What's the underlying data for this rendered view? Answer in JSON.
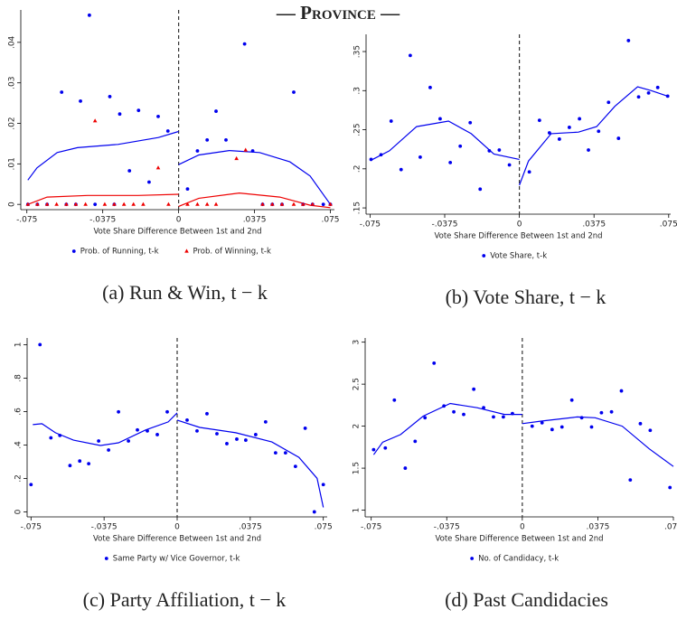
{
  "header": "— Province —",
  "chart_data": [
    {
      "type": "scatter",
      "caption": "(a) Run & Win, t − k",
      "xlabel": "Vote Share Difference Between 1st and 2nd",
      "xlim": [
        -0.078,
        0.077
      ],
      "ylim": [
        -0.0013,
        0.048
      ],
      "xticks": [
        {
          "value": -0.075,
          "label": "-.075"
        },
        {
          "value": -0.0375,
          "label": "-.0375"
        },
        0,
        {
          "value": 0.0375,
          "label": ".0375"
        },
        {
          "value": 0.075,
          "label": ".075"
        }
      ],
      "yticks": [
        0,
        {
          "value": 0.01,
          "label": ".01"
        },
        {
          "value": 0.02,
          "label": ".02"
        },
        {
          "value": 0.03,
          "label": ".03"
        },
        {
          "value": 0.04,
          "label": ".04"
        }
      ],
      "series": [
        {
          "name": "Prob. of Running, t-k",
          "color": "#0000ee",
          "marker": "circle",
          "x": [
            -0.0745,
            -0.0698,
            -0.065,
            -0.0578,
            -0.0555,
            -0.0508,
            -0.0485,
            -0.0441,
            -0.0413,
            -0.034,
            -0.0318,
            -0.0291,
            -0.0243,
            -0.0198,
            -0.0146,
            -0.0101,
            -0.0053,
            0.0044,
            0.0093,
            0.0141,
            0.0185,
            0.0234,
            0.0326,
            0.0366,
            0.0415,
            0.0463,
            0.0511,
            0.0569,
            0.0615,
            0.0662,
            0.0715,
            0.075
          ],
          "values": [
            0,
            0,
            0,
            0.0277,
            0,
            0,
            0.0255,
            0.0467,
            0,
            0.0266,
            0,
            0.0223,
            0.0083,
            0.0232,
            0.0055,
            0.0217,
            0.0181,
            0.0038,
            0.0132,
            0.0159,
            0.023,
            0.0159,
            0.0396,
            0.0132,
            0,
            0,
            0,
            0.0277,
            0,
            0,
            0,
            0
          ]
        },
        {
          "name": "Prob. of Winning, t-k",
          "color": "#ee0000",
          "marker": "triangle",
          "x": [
            -0.0745,
            -0.0698,
            -0.065,
            -0.0603,
            -0.0555,
            -0.0508,
            -0.046,
            -0.0413,
            -0.0365,
            -0.0318,
            -0.027,
            -0.0223,
            -0.0175,
            -0.0101,
            -0.005,
            0.0044,
            0.0093,
            0.0141,
            0.0185,
            0.0286,
            0.0331,
            0.0415,
            0.0463,
            0.0511,
            0.0569,
            0.0615,
            0.0662,
            0.075
          ],
          "values": [
            0,
            0,
            0,
            0,
            0,
            0,
            0,
            0.0206,
            0,
            0,
            0,
            0,
            0,
            0.009,
            0,
            0,
            0,
            0,
            0,
            0.0113,
            0.0134,
            0,
            0,
            0,
            0,
            0,
            0,
            0
          ]
        }
      ],
      "fits": [
        {
          "color": "#0000ee",
          "x": [
            -0.0745,
            -0.07,
            -0.06,
            -0.05,
            -0.03,
            -0.01,
            0
          ],
          "values": [
            0.006,
            0.009,
            0.0128,
            0.014,
            0.0148,
            0.0165,
            0.018
          ]
        },
        {
          "color": "#0000ee",
          "x": [
            0,
            0.01,
            0.025,
            0.04,
            0.055,
            0.065,
            0.075
          ],
          "values": [
            0.0098,
            0.0122,
            0.0133,
            0.0128,
            0.0105,
            0.007,
            0
          ]
        },
        {
          "color": "#ee0000",
          "x": [
            -0.0745,
            -0.065,
            -0.045,
            -0.02,
            0
          ],
          "values": [
            0,
            0.0018,
            0.0022,
            0.0022,
            0.0025
          ]
        },
        {
          "color": "#ee0000",
          "x": [
            0,
            0.01,
            0.03,
            0.05,
            0.065,
            0.075
          ],
          "values": [
            -0.0005,
            0.0015,
            0.0028,
            0.0018,
            -0.0002,
            -0.0008
          ]
        }
      ]
    },
    {
      "type": "scatter",
      "caption": "(b) Vote Share, t − k",
      "xlabel": "Vote Share Difference Between 1st and 2nd",
      "xlim": [
        -0.077,
        0.076
      ],
      "ylim": [
        0.142,
        0.372
      ],
      "xticks": [
        {
          "value": -0.075,
          "label": "-.075"
        },
        {
          "value": -0.0375,
          "label": "-.0375"
        },
        0,
        {
          "value": 0.0375,
          "label": ".0375"
        },
        {
          "value": 0.075,
          "label": ".075"
        }
      ],
      "yticks": [
        {
          "value": 0.15,
          "label": ".15"
        },
        {
          "value": 0.2,
          "label": ".2"
        },
        {
          "value": 0.25,
          "label": ".25"
        },
        {
          "value": 0.3,
          "label": ".3"
        },
        {
          "value": 0.35,
          "label": ".35"
        }
      ],
      "series": [
        {
          "name": "Vote Share, t-k",
          "color": "#0000ee",
          "marker": "circle",
          "x": [
            -0.0745,
            -0.0695,
            -0.0644,
            -0.0594,
            -0.0548,
            -0.0498,
            -0.0448,
            -0.0398,
            -0.0347,
            -0.0297,
            -0.0247,
            -0.0197,
            -0.0151,
            -0.0101,
            -0.005,
            0.005,
            0.0101,
            0.0151,
            0.0201,
            0.0251,
            0.0302,
            0.0347,
            0.0398,
            0.0448,
            0.0498,
            0.0548,
            0.0599,
            0.0649,
            0.0695,
            0.0745
          ],
          "values": [
            0.212,
            0.218,
            0.261,
            0.199,
            0.345,
            0.215,
            0.304,
            0.264,
            0.208,
            0.229,
            0.259,
            0.174,
            0.223,
            0.224,
            0.205,
            0.196,
            0.262,
            0.246,
            0.238,
            0.253,
            0.264,
            0.224,
            0.248,
            0.285,
            0.239,
            0.364,
            0.292,
            0.297,
            0.304,
            0.293
          ]
        }
      ],
      "fits": [
        {
          "color": "#0000ee",
          "x": [
            -0.0745,
            -0.0653,
            -0.0516,
            -0.0356,
            -0.0242,
            -0.0128,
            0
          ],
          "values": [
            0.211,
            0.223,
            0.254,
            0.261,
            0.245,
            0.219,
            0.212
          ]
        },
        {
          "color": "#0000ee",
          "x": [
            0,
            0.0046,
            0.016,
            0.0297,
            0.0388,
            0.048,
            0.0594,
            0.0663,
            0.0745
          ],
          "values": [
            0.179,
            0.21,
            0.245,
            0.247,
            0.254,
            0.28,
            0.305,
            0.3,
            0.293
          ]
        }
      ]
    },
    {
      "type": "scatter",
      "caption": "(c) Party Affiliation, t − k",
      "xlabel": "Vote Share Difference Between 1st and 2nd",
      "xlim": [
        -0.077,
        0.077
      ],
      "ylim": [
        -0.03,
        1.04
      ],
      "xticks": [
        {
          "value": -0.075,
          "label": "-.075"
        },
        {
          "value": -0.0375,
          "label": "-.0375"
        },
        0,
        {
          "value": 0.0375,
          "label": ".0375"
        },
        {
          "value": 0.075,
          "label": ".075"
        }
      ],
      "yticks": [
        0,
        {
          "value": 0.2,
          "label": ".2"
        },
        {
          "value": 0.4,
          "label": ".4"
        },
        {
          "value": 0.6,
          "label": ".6"
        },
        {
          "value": 0.8,
          "label": ".8"
        },
        1
      ],
      "series": [
        {
          "name": "Same Party w/ Vice Governor, t-k",
          "color": "#0000ee",
          "marker": "circle",
          "x": [
            -0.075,
            -0.0704,
            -0.0648,
            -0.0602,
            -0.055,
            -0.05,
            -0.0454,
            -0.0403,
            -0.0352,
            -0.0301,
            -0.025,
            -0.0204,
            -0.0153,
            -0.0102,
            -0.0051,
            0.0051,
            0.0102,
            0.0153,
            0.0204,
            0.0255,
            0.0306,
            0.0352,
            0.0403,
            0.0454,
            0.0505,
            0.0556,
            0.0607,
            0.0657,
            0.0704,
            0.075
          ],
          "values": [
            0.163,
            1.0,
            0.443,
            0.457,
            0.277,
            0.304,
            0.288,
            0.424,
            0.37,
            0.598,
            0.424,
            0.49,
            0.484,
            0.462,
            0.598,
            0.549,
            0.484,
            0.587,
            0.467,
            0.408,
            0.435,
            0.429,
            0.462,
            0.538,
            0.353,
            0.353,
            0.272,
            0.5,
            0,
            0.163
          ]
        }
      ],
      "fits": [
        {
          "color": "#0000ee",
          "x": [
            -0.0741,
            -0.0694,
            -0.0625,
            -0.0532,
            -0.0394,
            -0.0301,
            -0.0162,
            -0.0046,
            0
          ],
          "values": [
            0.522,
            0.527,
            0.473,
            0.429,
            0.397,
            0.413,
            0.49,
            0.538,
            0.592
          ]
        },
        {
          "color": "#0000ee",
          "x": [
            0,
            0.0116,
            0.0301,
            0.0486,
            0.0625,
            0.0718,
            0.075
          ],
          "values": [
            0.549,
            0.505,
            0.473,
            0.418,
            0.326,
            0.201,
            0.027
          ]
        }
      ]
    },
    {
      "type": "scatter",
      "caption": "(d) Past Candidacies",
      "xlabel": "Vote Share Difference Between 1st and 2nd",
      "xlim": [
        -0.078,
        0.075
      ],
      "ylim": [
        0.92,
        3.05
      ],
      "xticks": [
        {
          "value": -0.075,
          "label": "-.075"
        },
        {
          "value": -0.0375,
          "label": "-.0375"
        },
        0,
        {
          "value": 0.0375,
          "label": ".0375"
        },
        {
          "value": 0.075,
          "label": ".075"
        }
      ],
      "yticks": [
        1,
        1.5,
        2,
        2.5,
        3
      ],
      "series": [
        {
          "name": "No. of Candidacy, t-k",
          "color": "#0000ee",
          "marker": "circle",
          "x": [
            -0.0738,
            -0.068,
            -0.0635,
            -0.0581,
            -0.0532,
            -0.0483,
            -0.0438,
            -0.0389,
            -0.034,
            -0.0291,
            -0.0241,
            -0.0192,
            -0.0143,
            -0.0094,
            -0.0049,
            0.0049,
            0.0098,
            0.0148,
            0.0197,
            0.0246,
            0.0295,
            0.0344,
            0.0393,
            0.0443,
            0.0492,
            0.0536,
            0.0586,
            0.0635,
            0.0733
          ],
          "values": [
            1.72,
            1.74,
            2.31,
            1.5,
            1.82,
            2.1,
            2.75,
            2.24,
            2.17,
            2.14,
            2.44,
            2.22,
            2.11,
            2.11,
            2.15,
            2.0,
            2.04,
            1.96,
            1.99,
            2.31,
            2.1,
            1.99,
            2.16,
            2.17,
            2.42,
            1.36,
            2.03,
            1.95,
            1.27
          ]
        }
      ],
      "fits": [
        {
          "color": "#0000ee",
          "x": [
            -0.0738,
            -0.0693,
            -0.0604,
            -0.0492,
            -0.0358,
            -0.0224,
            -0.0089,
            0
          ],
          "values": [
            1.66,
            1.81,
            1.9,
            2.12,
            2.27,
            2.22,
            2.14,
            2.14
          ]
        },
        {
          "color": "#0000ee",
          "x": [
            0,
            0.0094,
            0.0273,
            0.0362,
            0.0496,
            0.063,
            0.075
          ],
          "values": [
            2.03,
            2.06,
            2.11,
            2.1,
            2.0,
            1.73,
            1.52
          ]
        }
      ]
    }
  ]
}
